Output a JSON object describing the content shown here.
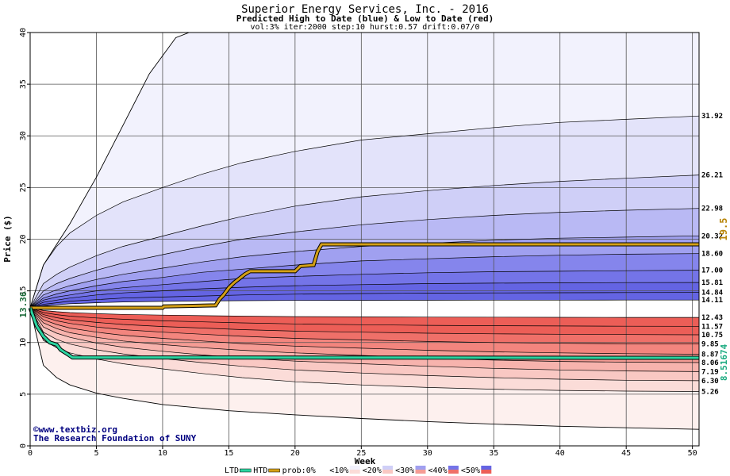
{
  "chart_data": {
    "type": "area",
    "title": "Superior Energy Services, Inc. - 2016",
    "subtitle": "Predicted High to Date (blue) &  Low to Date (red)",
    "params": "vol:3% iter:2000 step:10 hurst:0.57 drift:0.07/0",
    "xlabel": "Week",
    "ylabel": "Price ($)",
    "xlim": [
      0,
      50.5
    ],
    "ylim": [
      0,
      40
    ],
    "xticks": [
      0,
      5,
      10,
      15,
      20,
      25,
      30,
      35,
      40,
      45,
      50
    ],
    "yticks": [
      0,
      5,
      10,
      15,
      20,
      25,
      30,
      35,
      40
    ],
    "grid": true,
    "start_price": 13.36,
    "start_price_label": "13.36",
    "weeks": [
      0,
      1,
      2,
      3,
      5,
      7,
      10,
      13,
      16,
      20,
      25,
      30,
      35,
      40,
      45,
      50.5
    ],
    "high_quantiles": [
      {
        "label": "31.92",
        "value": 31.92,
        "values": [
          13.36,
          17.5,
          19.3,
          20.6,
          22.3,
          23.6,
          25.0,
          26.3,
          27.4,
          28.5,
          29.6,
          30.2,
          30.8,
          31.3,
          31.6,
          31.92
        ]
      },
      {
        "label": "26.21",
        "value": 26.21,
        "values": [
          13.36,
          15.7,
          16.6,
          17.3,
          18.4,
          19.3,
          20.3,
          21.3,
          22.2,
          23.2,
          24.1,
          24.7,
          25.2,
          25.6,
          25.9,
          26.21
        ]
      },
      {
        "label": "22.98",
        "value": 22.98,
        "values": [
          13.36,
          15.0,
          15.7,
          16.2,
          17.0,
          17.7,
          18.5,
          19.3,
          20.0,
          20.7,
          21.4,
          21.9,
          22.3,
          22.6,
          22.8,
          22.98
        ]
      },
      {
        "label": "20.32",
        "value": 20.32,
        "values": [
          13.36,
          14.6,
          15.1,
          15.5,
          16.1,
          16.6,
          17.2,
          17.8,
          18.3,
          18.8,
          19.3,
          19.6,
          19.9,
          20.1,
          20.2,
          20.32
        ]
      },
      {
        "label": "18.60",
        "value": 18.6,
        "values": [
          13.36,
          14.3,
          14.7,
          15.0,
          15.5,
          15.9,
          16.3,
          16.8,
          17.1,
          17.5,
          17.9,
          18.1,
          18.3,
          18.45,
          18.55,
          18.6
        ]
      },
      {
        "label": "17.00",
        "value": 17.0,
        "values": [
          13.36,
          14.1,
          14.4,
          14.6,
          15.0,
          15.3,
          15.6,
          15.9,
          16.2,
          16.4,
          16.6,
          16.75,
          16.85,
          16.9,
          16.95,
          17.0
        ]
      },
      {
        "label": "15.81",
        "value": 15.81,
        "values": [
          13.36,
          13.9,
          14.1,
          14.3,
          14.6,
          14.8,
          15.0,
          15.2,
          15.35,
          15.5,
          15.6,
          15.7,
          15.75,
          15.78,
          15.8,
          15.81
        ]
      },
      {
        "label": "14.84",
        "value": 14.84,
        "values": [
          13.36,
          13.7,
          13.85,
          14.0,
          14.15,
          14.3,
          14.4,
          14.5,
          14.6,
          14.68,
          14.74,
          14.78,
          14.8,
          14.82,
          14.83,
          14.84
        ]
      },
      {
        "label": "14.11",
        "value": 14.11,
        "values": [
          13.36,
          13.55,
          13.65,
          13.75,
          13.85,
          13.93,
          13.98,
          14.02,
          14.05,
          14.07,
          14.08,
          14.09,
          14.1,
          14.1,
          14.11,
          14.11
        ]
      }
    ],
    "low_quantiles": [
      {
        "label": "12.43",
        "value": 12.43,
        "values": [
          13.36,
          13.1,
          12.98,
          12.9,
          12.8,
          12.72,
          12.65,
          12.6,
          12.55,
          12.51,
          12.48,
          12.46,
          12.45,
          12.44,
          12.43,
          12.43
        ]
      },
      {
        "label": "11.57",
        "value": 11.57,
        "values": [
          13.36,
          12.9,
          12.7,
          12.55,
          12.38,
          12.25,
          12.1,
          12.0,
          11.9,
          11.8,
          11.72,
          11.66,
          11.62,
          11.6,
          11.58,
          11.57
        ]
      },
      {
        "label": "10.75",
        "value": 10.75,
        "values": [
          13.36,
          12.7,
          12.4,
          12.2,
          11.95,
          11.75,
          11.55,
          11.4,
          11.25,
          11.1,
          11.0,
          10.9,
          10.84,
          10.8,
          10.77,
          10.75
        ]
      },
      {
        "label": "9.85",
        "value": 9.85,
        "values": [
          13.36,
          12.5,
          12.1,
          11.85,
          11.5,
          11.25,
          11.0,
          10.8,
          10.6,
          10.4,
          10.25,
          10.1,
          10.0,
          9.93,
          9.88,
          9.85
        ]
      },
      {
        "label": "8.87",
        "value": 8.87,
        "values": [
          13.36,
          12.2,
          11.75,
          11.4,
          11.0,
          10.7,
          10.4,
          10.15,
          9.9,
          9.65,
          9.45,
          9.25,
          9.1,
          9.0,
          8.92,
          8.87
        ]
      },
      {
        "label": "8.06",
        "value": 8.06,
        "values": [
          13.36,
          11.9,
          11.35,
          10.95,
          10.5,
          10.15,
          9.8,
          9.5,
          9.25,
          9.0,
          8.75,
          8.5,
          8.3,
          8.17,
          8.1,
          8.06
        ]
      },
      {
        "label": "7.19",
        "value": 7.19,
        "values": [
          13.36,
          11.5,
          10.9,
          10.5,
          9.95,
          9.55,
          9.15,
          8.8,
          8.5,
          8.2,
          7.95,
          7.7,
          7.5,
          7.35,
          7.25,
          7.19
        ]
      },
      {
        "label": "6.30",
        "value": 6.3,
        "values": [
          13.36,
          11.0,
          10.3,
          9.85,
          9.3,
          8.9,
          8.45,
          8.05,
          7.7,
          7.35,
          7.05,
          6.8,
          6.6,
          6.45,
          6.35,
          6.3
        ]
      },
      {
        "label": "5.26",
        "value": 5.26,
        "values": [
          13.36,
          10.2,
          9.5,
          9.0,
          8.4,
          7.95,
          7.45,
          7.0,
          6.6,
          6.2,
          5.9,
          5.65,
          5.48,
          5.37,
          5.3,
          5.26
        ]
      }
    ],
    "outer_high": {
      "weeks": [
        0,
        1,
        3,
        5,
        7,
        9,
        11,
        12,
        50.5
      ],
      "values": [
        13.36,
        17.5,
        21.5,
        26.0,
        31.0,
        36.0,
        39.5,
        40.0,
        40.0
      ]
    },
    "outer_low": {
      "weeks": [
        0,
        1,
        2,
        3,
        5,
        7,
        10,
        15,
        20,
        25,
        30,
        35,
        40,
        45,
        50.5
      ],
      "values": [
        13.36,
        7.8,
        6.6,
        5.9,
        5.1,
        4.6,
        4.0,
        3.4,
        3.0,
        2.65,
        2.35,
        2.1,
        1.9,
        1.75,
        1.6
      ]
    },
    "htd_series": {
      "name": "HTD",
      "final_label": "19.5",
      "weeks": [
        0,
        10,
        10.1,
        14,
        14.3,
        14.6,
        15,
        15.4,
        15.8,
        16.2,
        16.6,
        20,
        20.4,
        21.4,
        21.7,
        22,
        50.5
      ],
      "values": [
        13.36,
        13.36,
        13.5,
        13.6,
        14.2,
        14.6,
        15.3,
        15.8,
        16.2,
        16.6,
        16.9,
        16.9,
        17.4,
        17.5,
        18.8,
        19.5,
        19.5
      ]
    },
    "ltd_series": {
      "name": "LTD",
      "final_label": "8.51674",
      "weeks": [
        0,
        0.5,
        1,
        1.5,
        2,
        2.3,
        2.8,
        3.2,
        50.5
      ],
      "values": [
        13.36,
        11.6,
        10.6,
        10.0,
        9.8,
        9.3,
        8.9,
        8.55,
        8.52
      ]
    },
    "legend": {
      "items": [
        "LTD",
        "HTD",
        "prob:0%",
        "<10%",
        "<20%",
        "<30%",
        "<40%",
        "<50%"
      ],
      "placement": "bottom"
    },
    "watermark_lines": [
      "www.textbiz.org",
      "The Research Foundation of SUNY"
    ],
    "colors": {
      "htd": "#d4a017",
      "ltd": "#2bd4a0",
      "blue_bands": [
        "#f2f2fd",
        "#e3e3fa",
        "#cfcff7",
        "#b9b9f4",
        "#a0a0f0",
        "#8585ec",
        "#7474e8",
        "#6464e3"
      ],
      "red_bands": [
        "#fdf0ee",
        "#fbdcd8",
        "#f9c8c3",
        "#f7b3ad",
        "#f59c95",
        "#f3857e",
        "#ef7069",
        "#ec5e57"
      ],
      "htd_label": "#b8860b",
      "ltd_label": "#1aaa80"
    }
  }
}
